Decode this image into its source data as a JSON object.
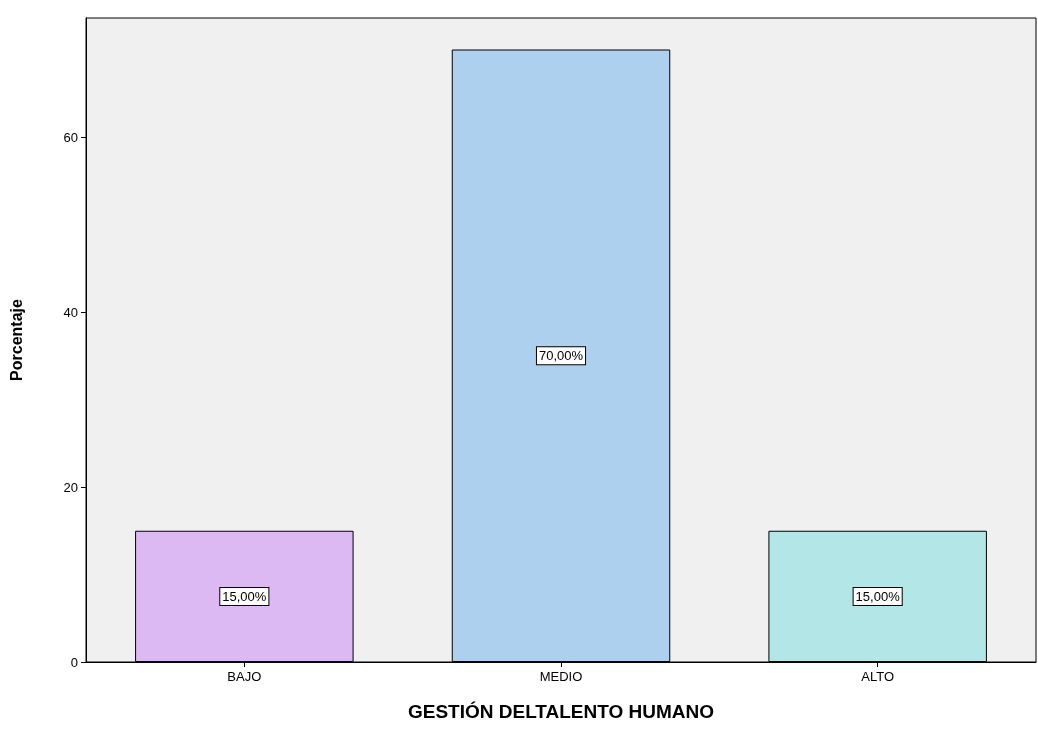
{
  "chart_data": {
    "type": "bar",
    "xlabel": "GESTIÓN DELTALENTO HUMANO",
    "ylabel": "Porcentaje",
    "categories": [
      "BAJO",
      "MEDIO",
      "ALTO"
    ],
    "values": [
      15,
      70,
      15
    ],
    "colors": [
      "#dcb9f2",
      "#acd0ee",
      "#b3e6e6"
    ],
    "value_labels": [
      "15,00%",
      "70,00%",
      "15,00%"
    ],
    "ylim": [
      0,
      73.6
    ],
    "yticks": [
      0,
      20,
      40,
      60
    ],
    "grid": false
  }
}
